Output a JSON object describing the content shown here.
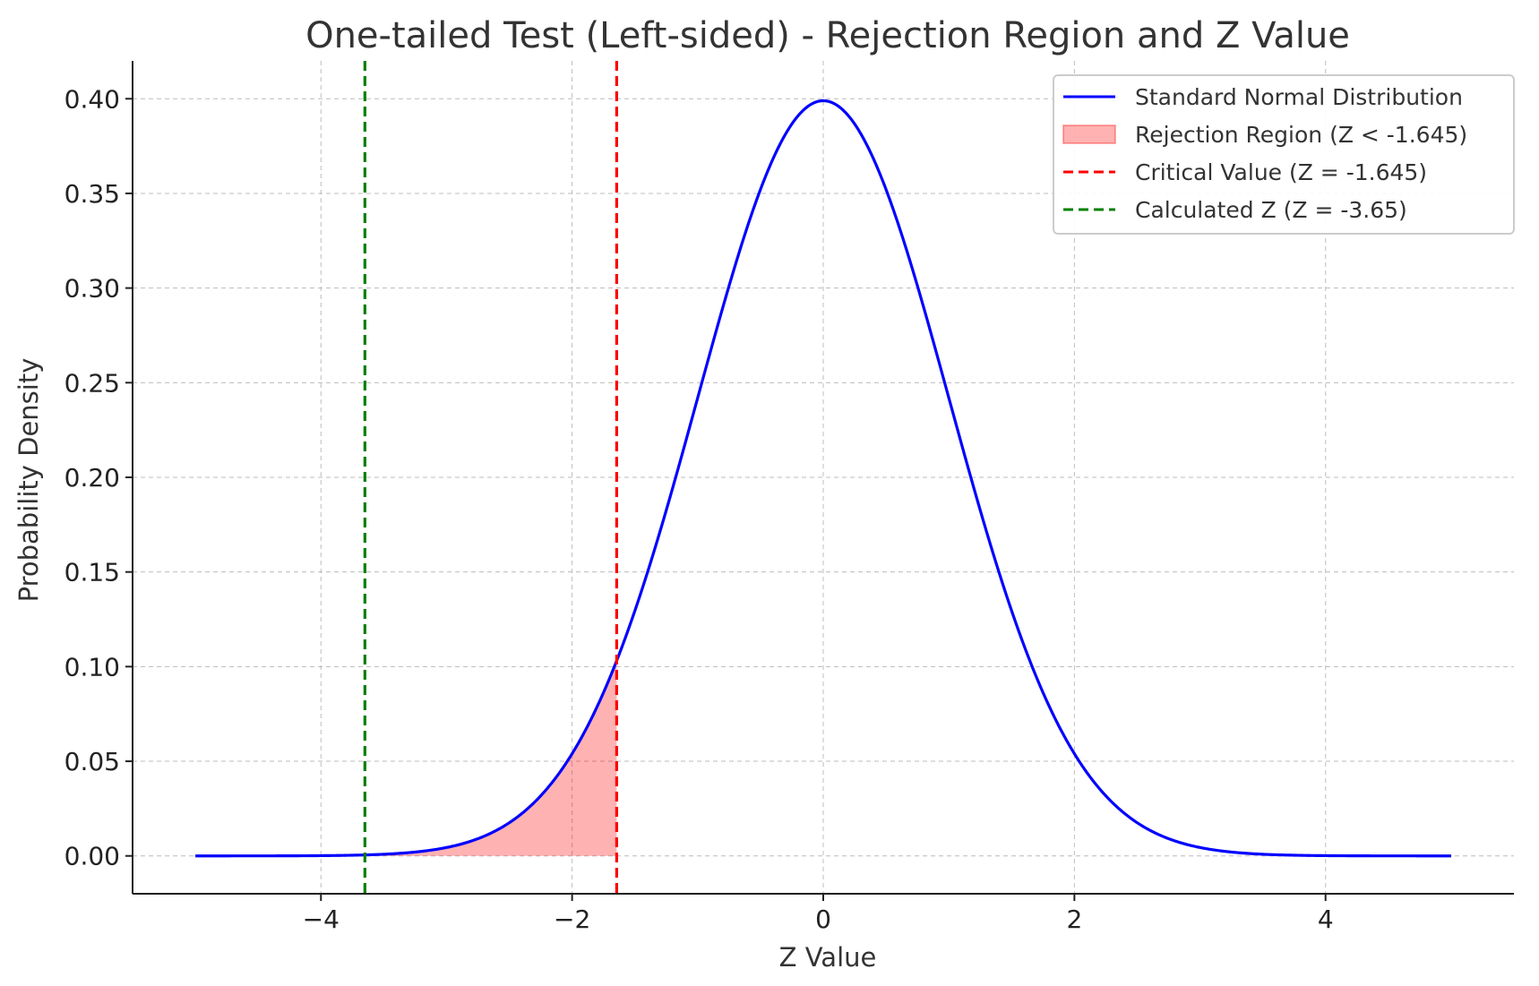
{
  "chart_data": {
    "type": "line",
    "title": "One-tailed Test (Left-sided) - Rejection Region and Z Value",
    "xlabel": "Z Value",
    "ylabel": "Probability Density",
    "xlim": [
      -5.5,
      5.5
    ],
    "ylim": [
      -0.02,
      0.42
    ],
    "grid": true,
    "legend_position": "top-right",
    "x_ticks": [
      {
        "value": -4,
        "label": "−4"
      },
      {
        "value": -2,
        "label": "−2"
      },
      {
        "value": 0,
        "label": "0"
      },
      {
        "value": 2,
        "label": "2"
      },
      {
        "value": 4,
        "label": "4"
      }
    ],
    "y_ticks": [
      {
        "value": 0.0,
        "label": "0.00"
      },
      {
        "value": 0.05,
        "label": "0.05"
      },
      {
        "value": 0.1,
        "label": "0.10"
      },
      {
        "value": 0.15,
        "label": "0.15"
      },
      {
        "value": 0.2,
        "label": "0.20"
      },
      {
        "value": 0.25,
        "label": "0.25"
      },
      {
        "value": 0.3,
        "label": "0.30"
      },
      {
        "value": 0.35,
        "label": "0.35"
      },
      {
        "value": 0.4,
        "label": "0.40"
      }
    ],
    "curve": {
      "name": "Standard Normal Distribution",
      "color": "#0000ff",
      "x": [
        -5.0,
        -4.5,
        -4.0,
        -3.5,
        -3.0,
        -2.5,
        -2.0,
        -1.645,
        -1.5,
        -1.0,
        -0.5,
        0.0,
        0.5,
        1.0,
        1.5,
        2.0,
        2.5,
        3.0,
        3.5,
        4.0,
        4.5,
        5.0
      ],
      "y": [
        0.0,
        0.0,
        0.0001,
        0.0009,
        0.0044,
        0.0175,
        0.054,
        0.1031,
        0.1295,
        0.242,
        0.3521,
        0.3989,
        0.3521,
        0.242,
        0.1295,
        0.054,
        0.0175,
        0.0044,
        0.0009,
        0.0001,
        0.0,
        0.0
      ]
    },
    "rejection_region": {
      "name": "Rejection Region (Z < -1.645)",
      "color": "#ff0000",
      "x_from": -5.0,
      "x_to": -1.645
    },
    "critical_value": {
      "name": "Critical Value (Z = -1.645)",
      "x": -1.645,
      "color": "#ff0000"
    },
    "calculated_z": {
      "name": "Calculated Z (Z = -3.65)",
      "x": -3.65,
      "color": "#008000"
    }
  }
}
